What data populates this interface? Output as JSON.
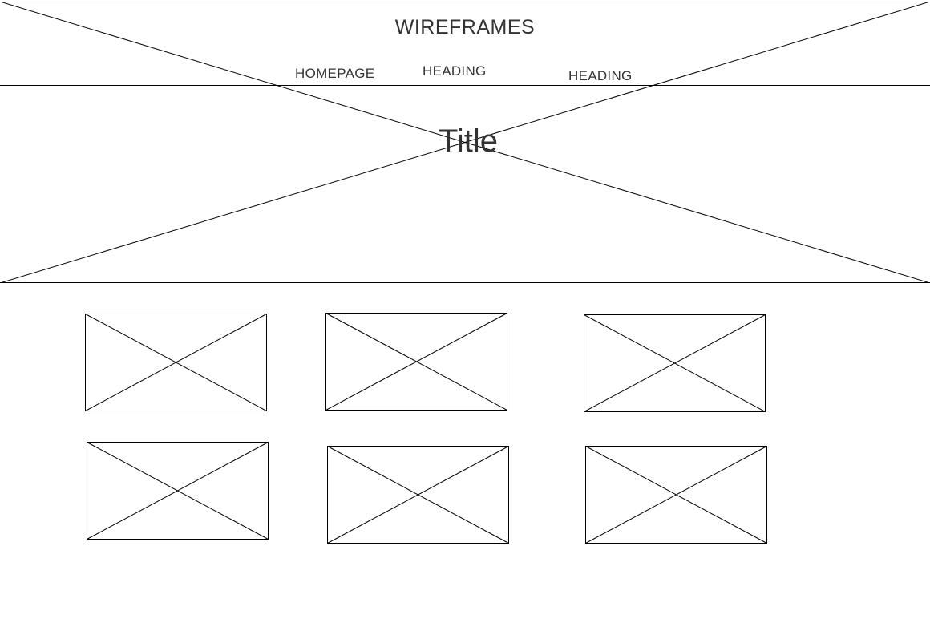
{
  "header": {
    "site_title": "WIREFRAMES",
    "nav": [
      {
        "label": "HOMEPAGE"
      },
      {
        "label": "HEADING"
      },
      {
        "label": "HEADING"
      }
    ]
  },
  "hero": {
    "title": "Title"
  },
  "colors": {
    "line": "#000000",
    "text": "#333333",
    "background": "#ffffff"
  },
  "placeholders": {
    "count": 6,
    "icon": "image-placeholder-icon"
  }
}
